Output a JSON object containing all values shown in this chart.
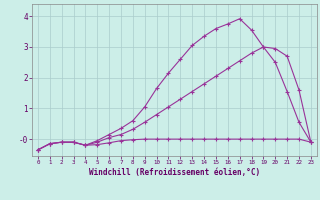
{
  "xlabel": "Windchill (Refroidissement éolien,°C)",
  "bg_color": "#cceee8",
  "grid_color": "#aacccc",
  "line_color": "#993399",
  "figsize": [
    3.2,
    2.0
  ],
  "dpi": 100,
  "xlim": [
    -0.5,
    23.5
  ],
  "ylim": [
    -0.55,
    4.4
  ],
  "xticks": [
    0,
    1,
    2,
    3,
    4,
    5,
    6,
    7,
    8,
    9,
    10,
    11,
    12,
    13,
    14,
    15,
    16,
    17,
    18,
    19,
    20,
    21,
    22,
    23
  ],
  "yticks": [
    0,
    1,
    2,
    3,
    4
  ],
  "ytick_labels": [
    "-0",
    "1",
    "2",
    "3",
    "4"
  ],
  "line1_x": [
    0,
    1,
    2,
    3,
    4,
    5,
    6,
    7,
    8,
    9,
    10,
    11,
    12,
    13,
    14,
    15,
    16,
    17,
    18,
    19,
    20,
    21,
    22,
    23
  ],
  "line1_y": [
    -0.35,
    -0.15,
    -0.1,
    -0.1,
    -0.2,
    -0.18,
    -0.12,
    -0.05,
    -0.02,
    0.0,
    0.0,
    0.0,
    0.0,
    0.0,
    0.0,
    0.0,
    0.0,
    0.0,
    0.0,
    0.0,
    0.0,
    0.0,
    0.0,
    -0.1
  ],
  "line2_x": [
    0,
    1,
    2,
    3,
    4,
    5,
    6,
    7,
    8,
    9,
    10,
    11,
    12,
    13,
    14,
    15,
    16,
    17,
    18,
    19,
    20,
    21,
    22,
    23
  ],
  "line2_y": [
    -0.35,
    -0.15,
    -0.1,
    -0.1,
    -0.2,
    -0.1,
    0.05,
    0.15,
    0.32,
    0.55,
    0.8,
    1.05,
    1.3,
    1.55,
    1.8,
    2.05,
    2.3,
    2.55,
    2.8,
    3.0,
    2.95,
    2.7,
    1.6,
    -0.1
  ],
  "line3_x": [
    0,
    1,
    2,
    3,
    4,
    5,
    6,
    7,
    8,
    9,
    10,
    11,
    12,
    13,
    14,
    15,
    16,
    17,
    18,
    19,
    20,
    21,
    22,
    23
  ],
  "line3_y": [
    -0.35,
    -0.15,
    -0.1,
    -0.1,
    -0.2,
    -0.05,
    0.15,
    0.35,
    0.6,
    1.05,
    1.65,
    2.15,
    2.6,
    3.05,
    3.35,
    3.6,
    3.75,
    3.92,
    3.55,
    3.0,
    2.5,
    1.55,
    0.55,
    -0.1
  ]
}
